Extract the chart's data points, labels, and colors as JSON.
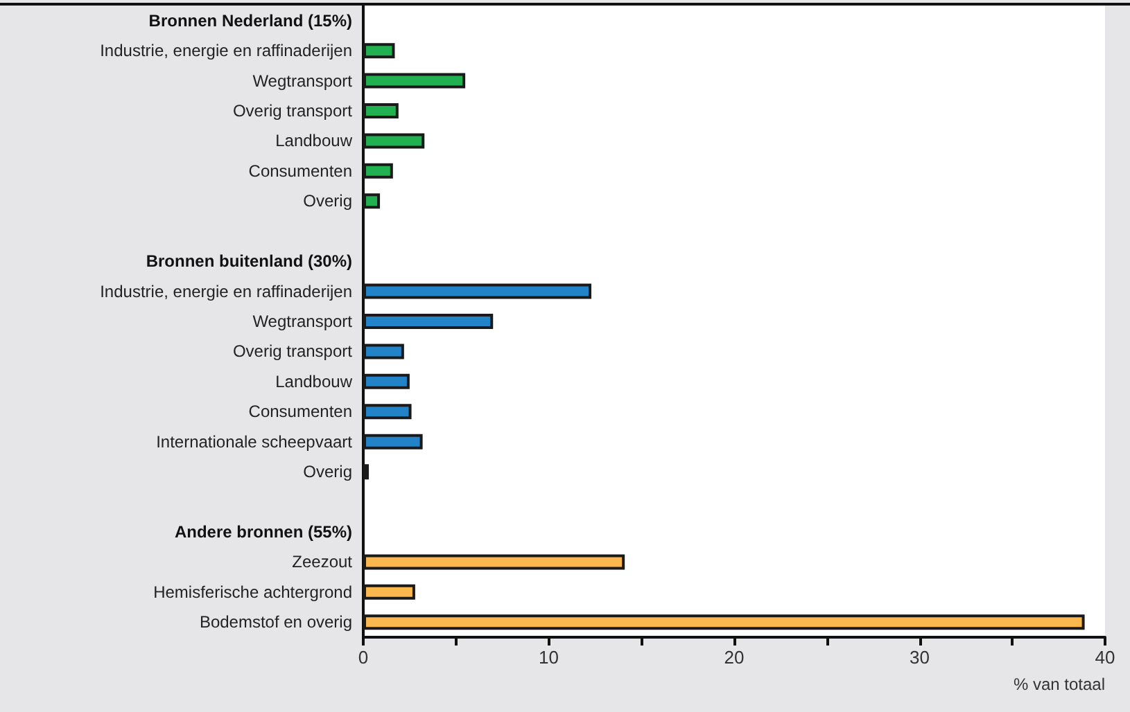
{
  "chart_data": {
    "type": "bar",
    "orientation": "horizontal",
    "xlabel": "% van totaal",
    "categories": [
      "Bronnen Nederland (15%)",
      "Industrie, energie en raffinaderijen",
      "Wegtransport",
      "Overig transport",
      "Landbouw",
      "Consumenten",
      "Overig",
      null,
      "Bronnen buitenland (30%)",
      "Industrie, energie en raffinaderijen",
      "Wegtransport",
      "Overig transport",
      "Landbouw",
      "Consumenten",
      "Internationale scheepvaart",
      "Overig",
      null,
      "Andere bronnen (55%)",
      "Zeezout",
      "Hemisferische achtergrond",
      "Bodemstof en overig"
    ],
    "values": [
      null,
      1.7,
      5.5,
      1.9,
      3.3,
      1.6,
      0.9,
      null,
      null,
      12.3,
      7.0,
      2.2,
      2.5,
      2.6,
      3.2,
      0.3,
      null,
      null,
      14.1,
      2.8,
      38.9
    ],
    "colors": [
      null,
      "#22b150",
      "#22b150",
      "#22b150",
      "#22b150",
      "#22b150",
      "#22b150",
      null,
      null,
      "#2383c8",
      "#2383c8",
      "#2383c8",
      "#2383c8",
      "#2383c8",
      "#2383c8",
      "#2383c8",
      null,
      null,
      "#fbb84f",
      "#fbb84f",
      "#fbb84f"
    ],
    "xlim": [
      0,
      40
    ],
    "xticks": [
      0,
      {
        "value": 5,
        "label": null
      },
      10,
      {
        "value": 15,
        "label": null
      },
      20,
      {
        "value": 25,
        "label": null
      },
      30,
      {
        "value": 35,
        "label": null
      },
      40
    ],
    "grid": false
  }
}
